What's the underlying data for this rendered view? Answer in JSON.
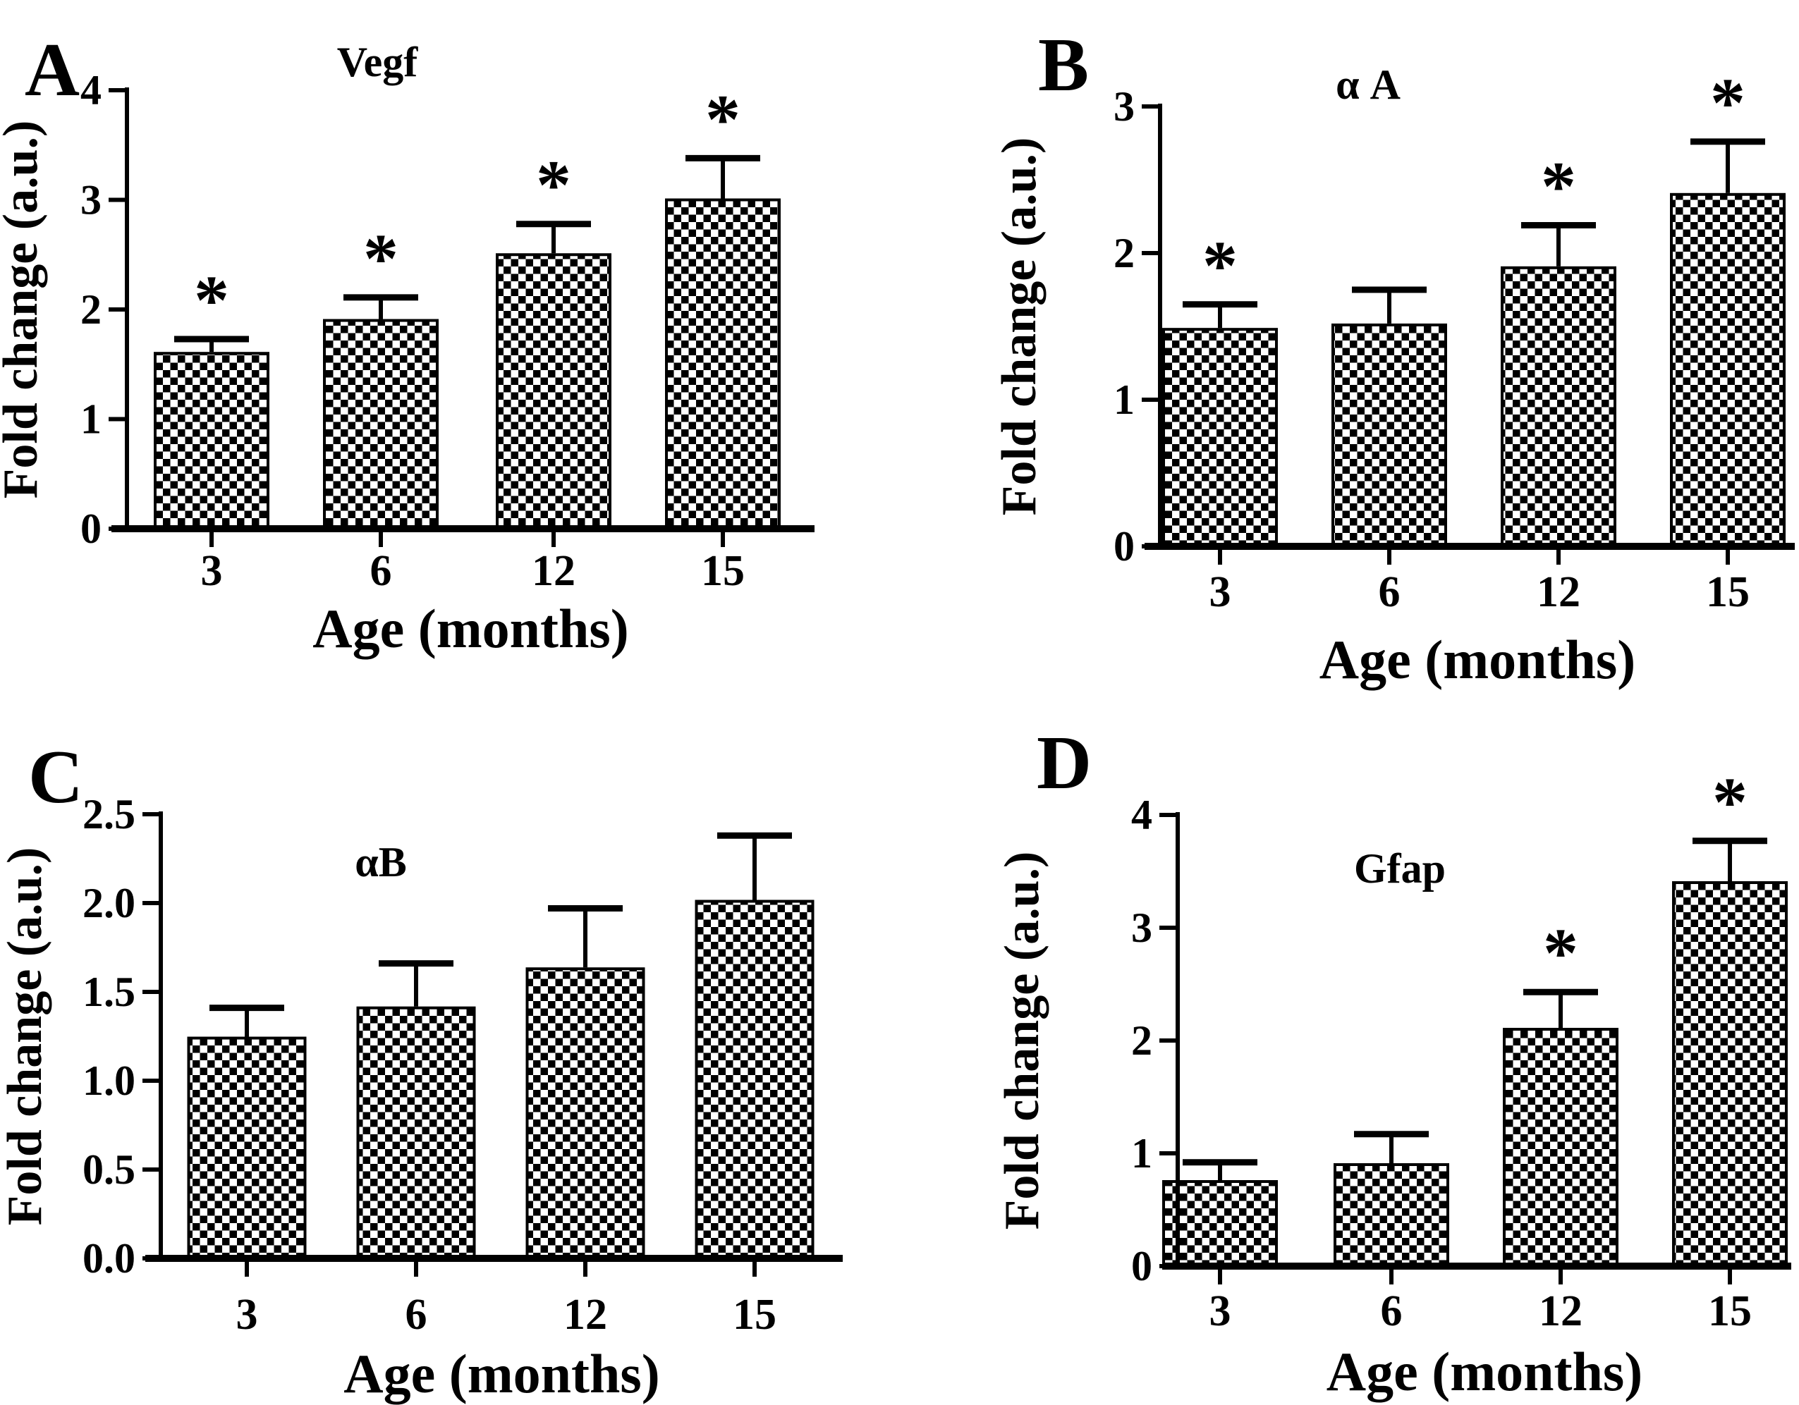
{
  "figure": {
    "background_color": "#ffffff",
    "ink_color": "#000000",
    "description_xlabel": "Age (months)",
    "description_ylabel": "Fold change (a.u.)"
  },
  "chart_data": [
    {
      "type": "bar",
      "panel_letter": "A",
      "title": "Vegf",
      "categories": [
        "3",
        "6",
        "12",
        "15"
      ],
      "values": [
        1.6,
        1.9,
        2.5,
        3.0
      ],
      "errors_up": [
        0.13,
        0.21,
        0.28,
        0.38
      ],
      "significance": [
        "*",
        "*",
        "*",
        "*"
      ],
      "xlabel": "Age (months)",
      "ylabel": "Fold change (a.u.)",
      "ylim": [
        0,
        4
      ],
      "yticks": [
        "0",
        "1",
        "2",
        "3",
        "4"
      ],
      "bar_fill": "black-white-checkerboard",
      "legend": "none",
      "grid": "off"
    },
    {
      "type": "bar",
      "panel_letter": "B",
      "title": "α A",
      "categories": [
        "3",
        "6",
        "12",
        "15"
      ],
      "values": [
        1.48,
        1.51,
        1.9,
        2.4
      ],
      "errors_up": [
        0.17,
        0.24,
        0.29,
        0.36
      ],
      "significance": [
        "*",
        "",
        "*",
        "*"
      ],
      "xlabel": "Age (months)",
      "ylabel": "Fold change (a.u.)",
      "ylim": [
        0,
        3
      ],
      "yticks": [
        "0",
        "1",
        "2",
        "3"
      ],
      "bar_fill": "black-white-checkerboard",
      "legend": "none",
      "grid": "off"
    },
    {
      "type": "bar",
      "panel_letter": "C",
      "title": "αB",
      "categories": [
        "3",
        "6",
        "12",
        "15"
      ],
      "values": [
        1.24,
        1.41,
        1.63,
        2.01
      ],
      "errors_up": [
        0.17,
        0.25,
        0.34,
        0.37
      ],
      "significance": [
        "",
        "",
        "",
        ""
      ],
      "xlabel": "Age (months)",
      "ylabel": "Fold change (a.u.)",
      "ylim": [
        0,
        2.5
      ],
      "yticks": [
        "0.0",
        "0.5",
        "1.0",
        "1.5",
        "2.0",
        "2.5"
      ],
      "bar_fill": "black-white-checkerboard",
      "legend": "none",
      "grid": "off"
    },
    {
      "type": "bar",
      "panel_letter": "D",
      "title": "Gfap",
      "categories": [
        "3",
        "6",
        "12",
        "15"
      ],
      "values": [
        0.75,
        0.9,
        2.1,
        3.4
      ],
      "errors_up": [
        0.17,
        0.27,
        0.33,
        0.37
      ],
      "significance": [
        "",
        "",
        "*",
        "*"
      ],
      "xlabel": "Age (months)",
      "ylabel": "Fold change (a.u.)",
      "ylim": [
        0,
        4
      ],
      "yticks": [
        "0",
        "1",
        "2",
        "3",
        "4"
      ],
      "bar_fill": "black-white-checkerboard",
      "legend": "none",
      "grid": "off"
    }
  ]
}
